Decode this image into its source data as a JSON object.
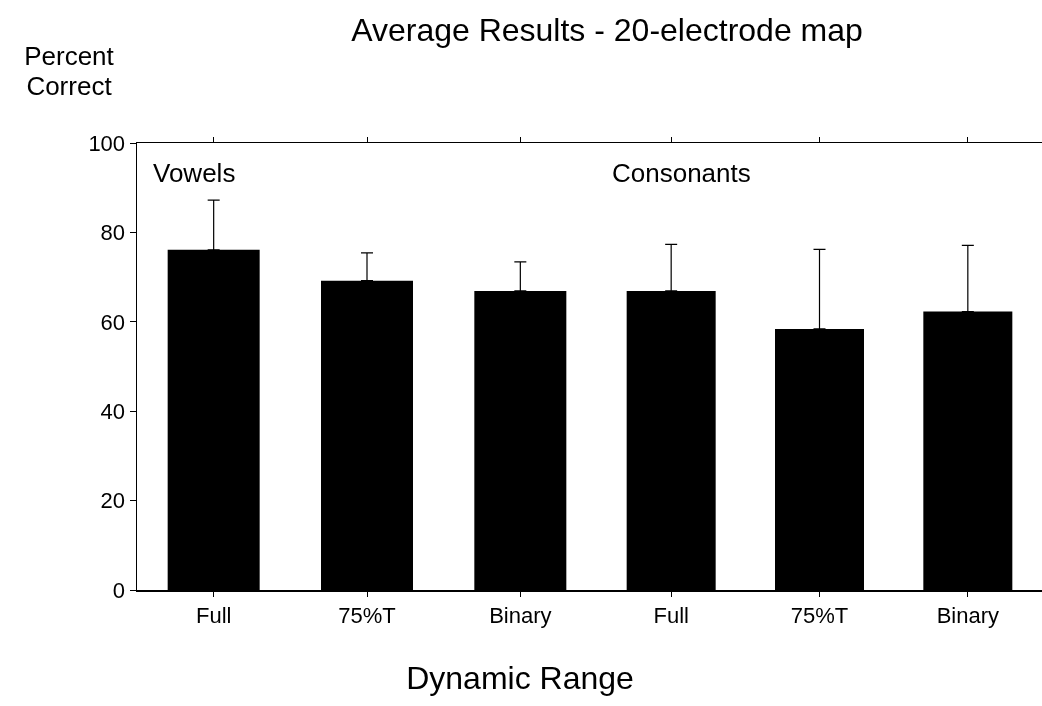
{
  "chart_data": [
    {
      "type": "bar",
      "title": "Average Results - 20-electrode map",
      "subtitle": "Vowels",
      "ylabel": "Percent Correct",
      "xlabel": "Dynamic Range",
      "categories": [
        "Full",
        "75%T",
        "Binary"
      ],
      "values": [
        76.1,
        69.2,
        66.9
      ],
      "color": "#000000",
      "errors": [
        [
          76.1,
          87.2
        ],
        [
          69.2,
          75.4
        ],
        [
          66.9,
          73.4
        ]
      ],
      "ylim": [
        0,
        100
      ],
      "yticks": [
        0,
        20,
        40,
        60,
        80,
        100
      ],
      "grid": false,
      "legend": false
    },
    {
      "type": "bar",
      "subtitle": "Consonants",
      "categories": [
        "Full",
        "75%T",
        "Binary"
      ],
      "values": [
        66.9,
        58.4,
        62.3
      ],
      "color": "#000000",
      "errors": [
        [
          66.9,
          77.3
        ],
        [
          58.4,
          76.2
        ],
        [
          62.3,
          77.1
        ]
      ],
      "ylim": [
        0,
        100
      ],
      "yticks": [
        0,
        20,
        40,
        60,
        80,
        100
      ],
      "tick_labels": "x",
      "grid": false,
      "legend": false
    }
  ]
}
